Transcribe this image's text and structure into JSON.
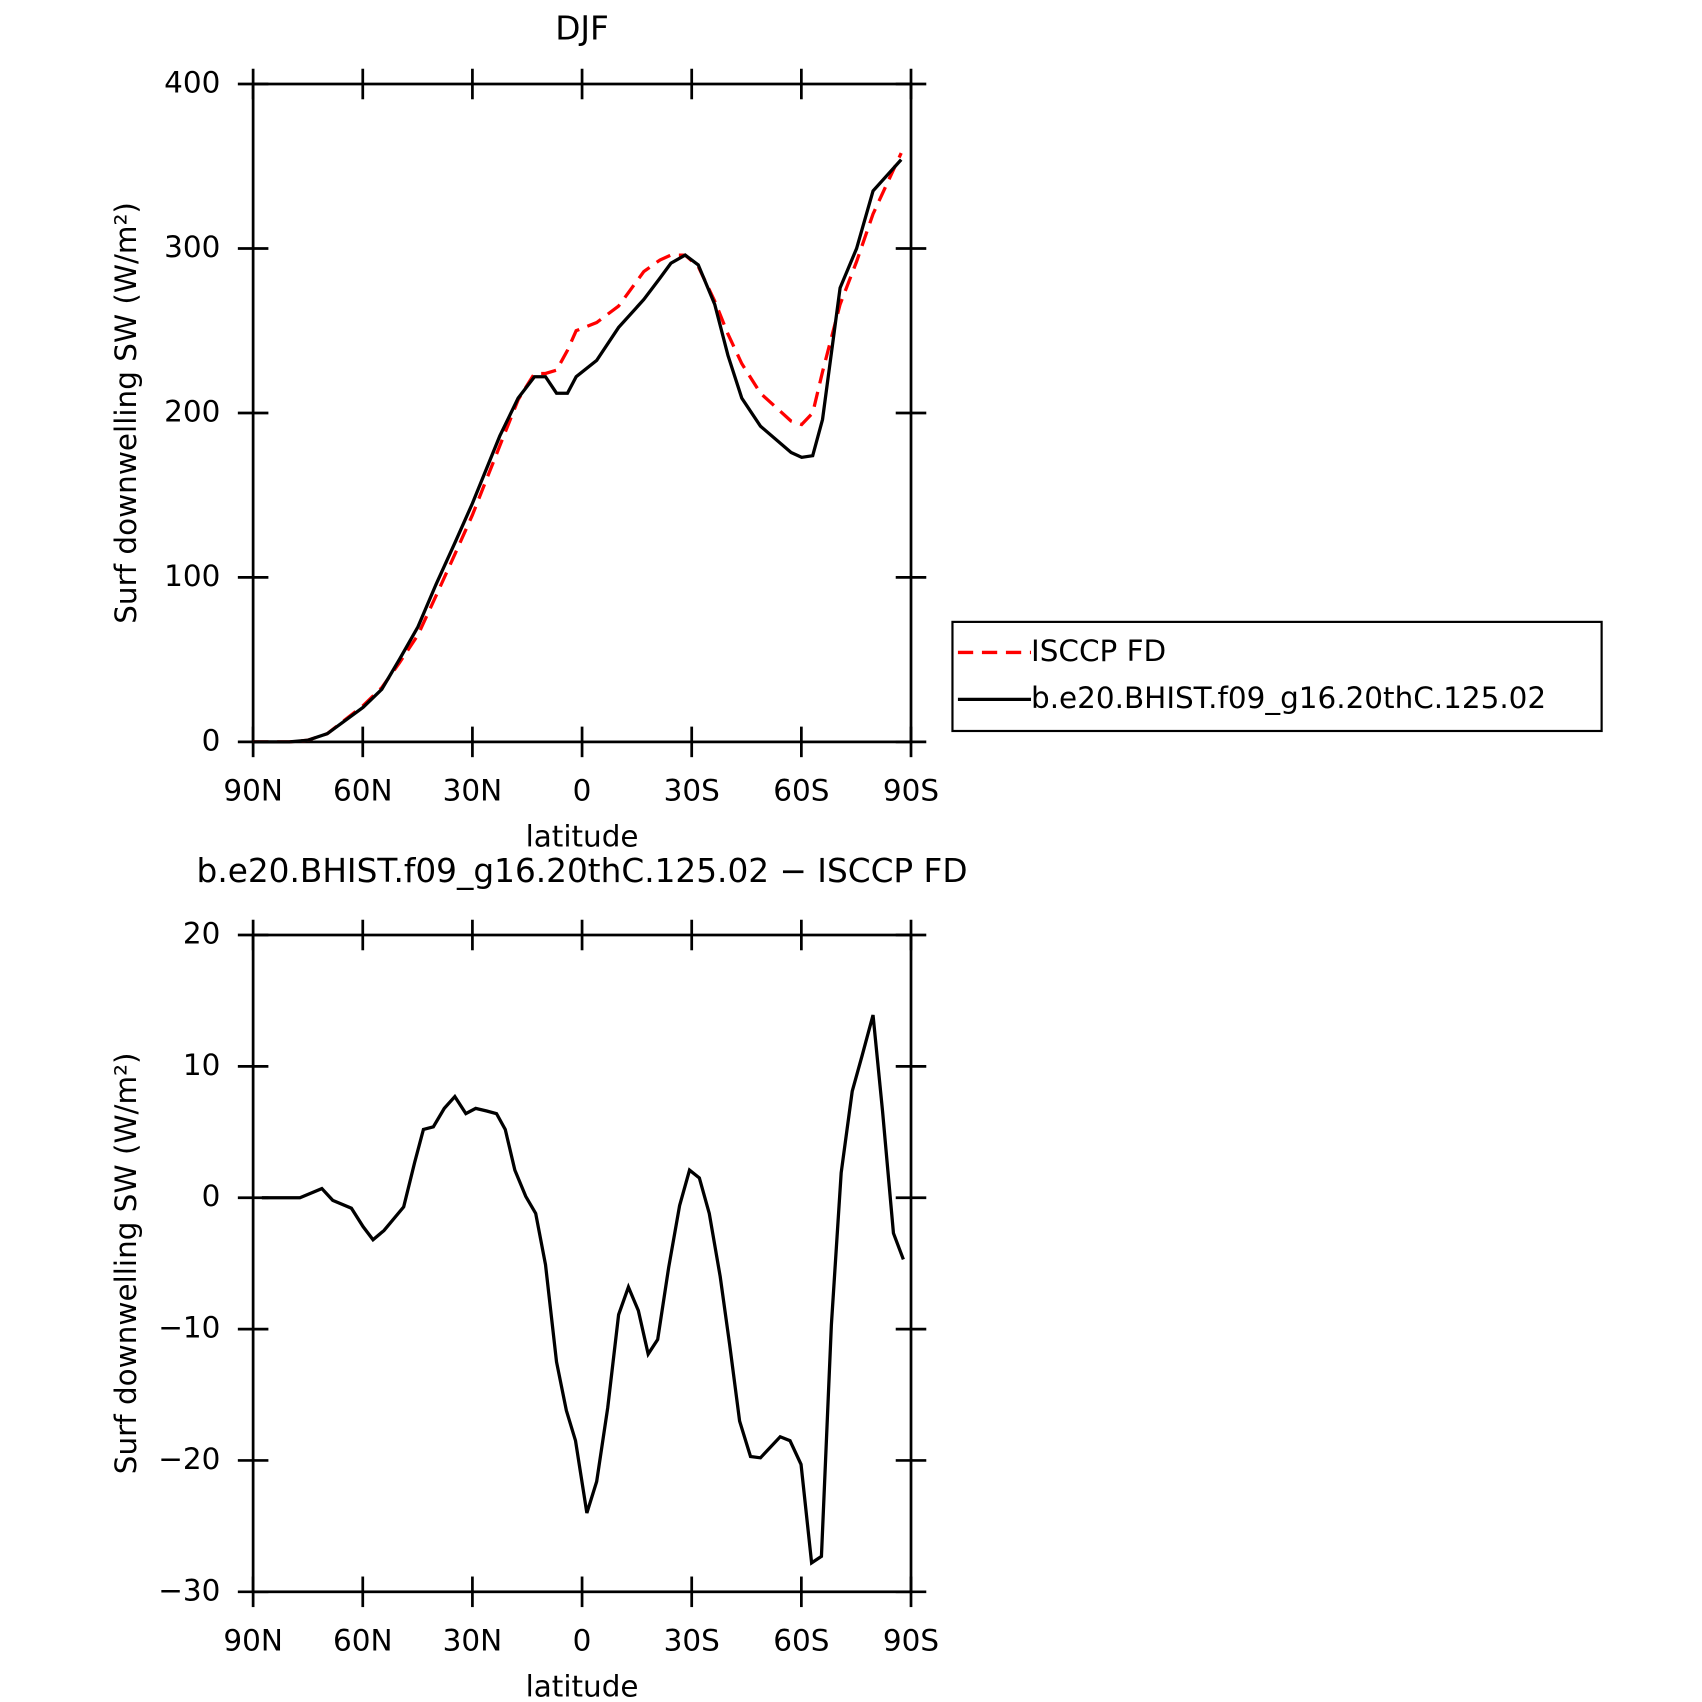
{
  "chart_data": [
    {
      "type": "line",
      "title": "DJF",
      "xlabel": "latitude",
      "ylabel": "Surf downwelling SW (W/m²)",
      "xlim": [
        90,
        -90
      ],
      "xticks": [
        {
          "value": 90,
          "label": "90N"
        },
        {
          "value": 60,
          "label": "60N"
        },
        {
          "value": 30,
          "label": "30N"
        },
        0,
        {
          "value": -30,
          "label": "30S"
        },
        {
          "value": -60,
          "label": "60S"
        },
        {
          "value": -90,
          "label": "90S"
        }
      ],
      "ylim": [
        0,
        400
      ],
      "yticks": [
        0,
        100,
        200,
        300,
        400
      ],
      "legend": "right",
      "x": [
        90,
        80.1,
        75.1,
        69.7,
        59.9,
        54.8,
        50.0,
        44.9,
        39.9,
        34.8,
        30.0,
        22.5,
        17.5,
        13.0,
        10.0,
        7.0,
        4.0,
        1.6,
        -4.0,
        -10.0,
        -16.9,
        -21.3,
        -24.3,
        -28.2,
        -31.8,
        -36.3,
        -39.9,
        -43.7,
        -48.8,
        -57.2,
        -60.1,
        -63.1,
        -65.8,
        -70.6,
        -75.1,
        -79.6,
        -87.3
      ],
      "series": [
        {
          "name": "ISCCP FD",
          "color": "#ff0000",
          "dashed": true,
          "values": [
            0,
            0,
            1,
            5,
            22,
            33,
            48,
            65,
            89,
            114,
            138,
            180,
            208,
            224,
            224,
            226,
            238,
            250,
            255,
            265,
            286,
            293,
            296,
            296,
            289,
            268,
            248,
            230,
            212,
            195,
            193,
            200,
            225,
            266,
            292,
            321,
            358
          ]
        },
        {
          "name": "b.e20.BHIST.f09_g16.20thC.125.02",
          "color": "#000000",
          "dashed": false,
          "values": [
            0,
            0,
            1,
            5,
            21,
            32,
            50,
            70,
            96,
            121,
            145,
            186,
            209,
            222,
            222,
            212,
            212,
            222,
            232,
            252,
            269,
            282,
            291,
            296,
            290,
            266,
            235,
            209,
            192,
            176,
            173,
            174,
            196,
            276,
            300,
            335,
            354
          ]
        }
      ]
    },
    {
      "type": "line",
      "title": "b.e20.BHIST.f09_g16.20thC.125.02 − ISCCP FD",
      "xlabel": "latitude",
      "ylabel": "Surf downwelling SW (W/m²)",
      "xlim": [
        90,
        -90
      ],
      "xticks": [
        {
          "value": 90,
          "label": "90N"
        },
        {
          "value": 60,
          "label": "60N"
        },
        {
          "value": 30,
          "label": "30N"
        },
        0,
        {
          "value": -30,
          "label": "30S"
        },
        {
          "value": -60,
          "label": "60S"
        },
        {
          "value": -90,
          "label": "90S"
        }
      ],
      "ylim": [
        -30,
        20
      ],
      "yticks": [
        {
          "value": -30,
          "label": "−30"
        },
        {
          "value": -20,
          "label": "−20"
        },
        {
          "value": -10,
          "label": "−10"
        },
        0,
        10,
        20
      ],
      "x": [
        87.6,
        77.2,
        71.2,
        68.2,
        63.1,
        59.9,
        57.2,
        54.2,
        48.8,
        45.8,
        43.4,
        40.7,
        37.7,
        34.8,
        31.8,
        29.1,
        26.1,
        23.4,
        21.0,
        18.4,
        15.4,
        12.7,
        10.0,
        7.0,
        4.3,
        1.8,
        -1.3,
        -4.0,
        -7.0,
        -10.0,
        -12.7,
        -15.4,
        -18.1,
        -20.7,
        -23.7,
        -26.7,
        -29.4,
        -32.1,
        -34.8,
        -37.8,
        -40.4,
        -43.1,
        -46.1,
        -48.8,
        -54.2,
        -56.9,
        -59.9,
        -62.8,
        -65.5,
        -68.2,
        -70.9,
        -73.9,
        -76.6,
        -79.6,
        -82.2,
        -85.2,
        -87.9
      ],
      "series": [
        {
          "color": "#000000",
          "dashed": false,
          "values": [
            0,
            0,
            0.7,
            -0.2,
            -0.8,
            -2.2,
            -3.2,
            -2.5,
            -0.7,
            2.7,
            5.2,
            5.4,
            6.8,
            7.7,
            6.4,
            6.8,
            6.6,
            6.4,
            5.2,
            2.1,
            0.1,
            -1.2,
            -5.1,
            -12.5,
            -16.2,
            -18.5,
            -24.0,
            -21.6,
            -16.0,
            -8.9,
            -6.8,
            -8.6,
            -11.9,
            -10.8,
            -5.3,
            -0.6,
            2.1,
            1.5,
            -1.2,
            -6.0,
            -11.2,
            -17.0,
            -19.7,
            -19.8,
            -18.2,
            -18.5,
            -20.3,
            -27.8,
            -27.3,
            -9.7,
            1.9,
            8.1,
            10.8,
            13.9,
            6.6,
            -2.7,
            -4.7
          ]
        }
      ]
    }
  ]
}
